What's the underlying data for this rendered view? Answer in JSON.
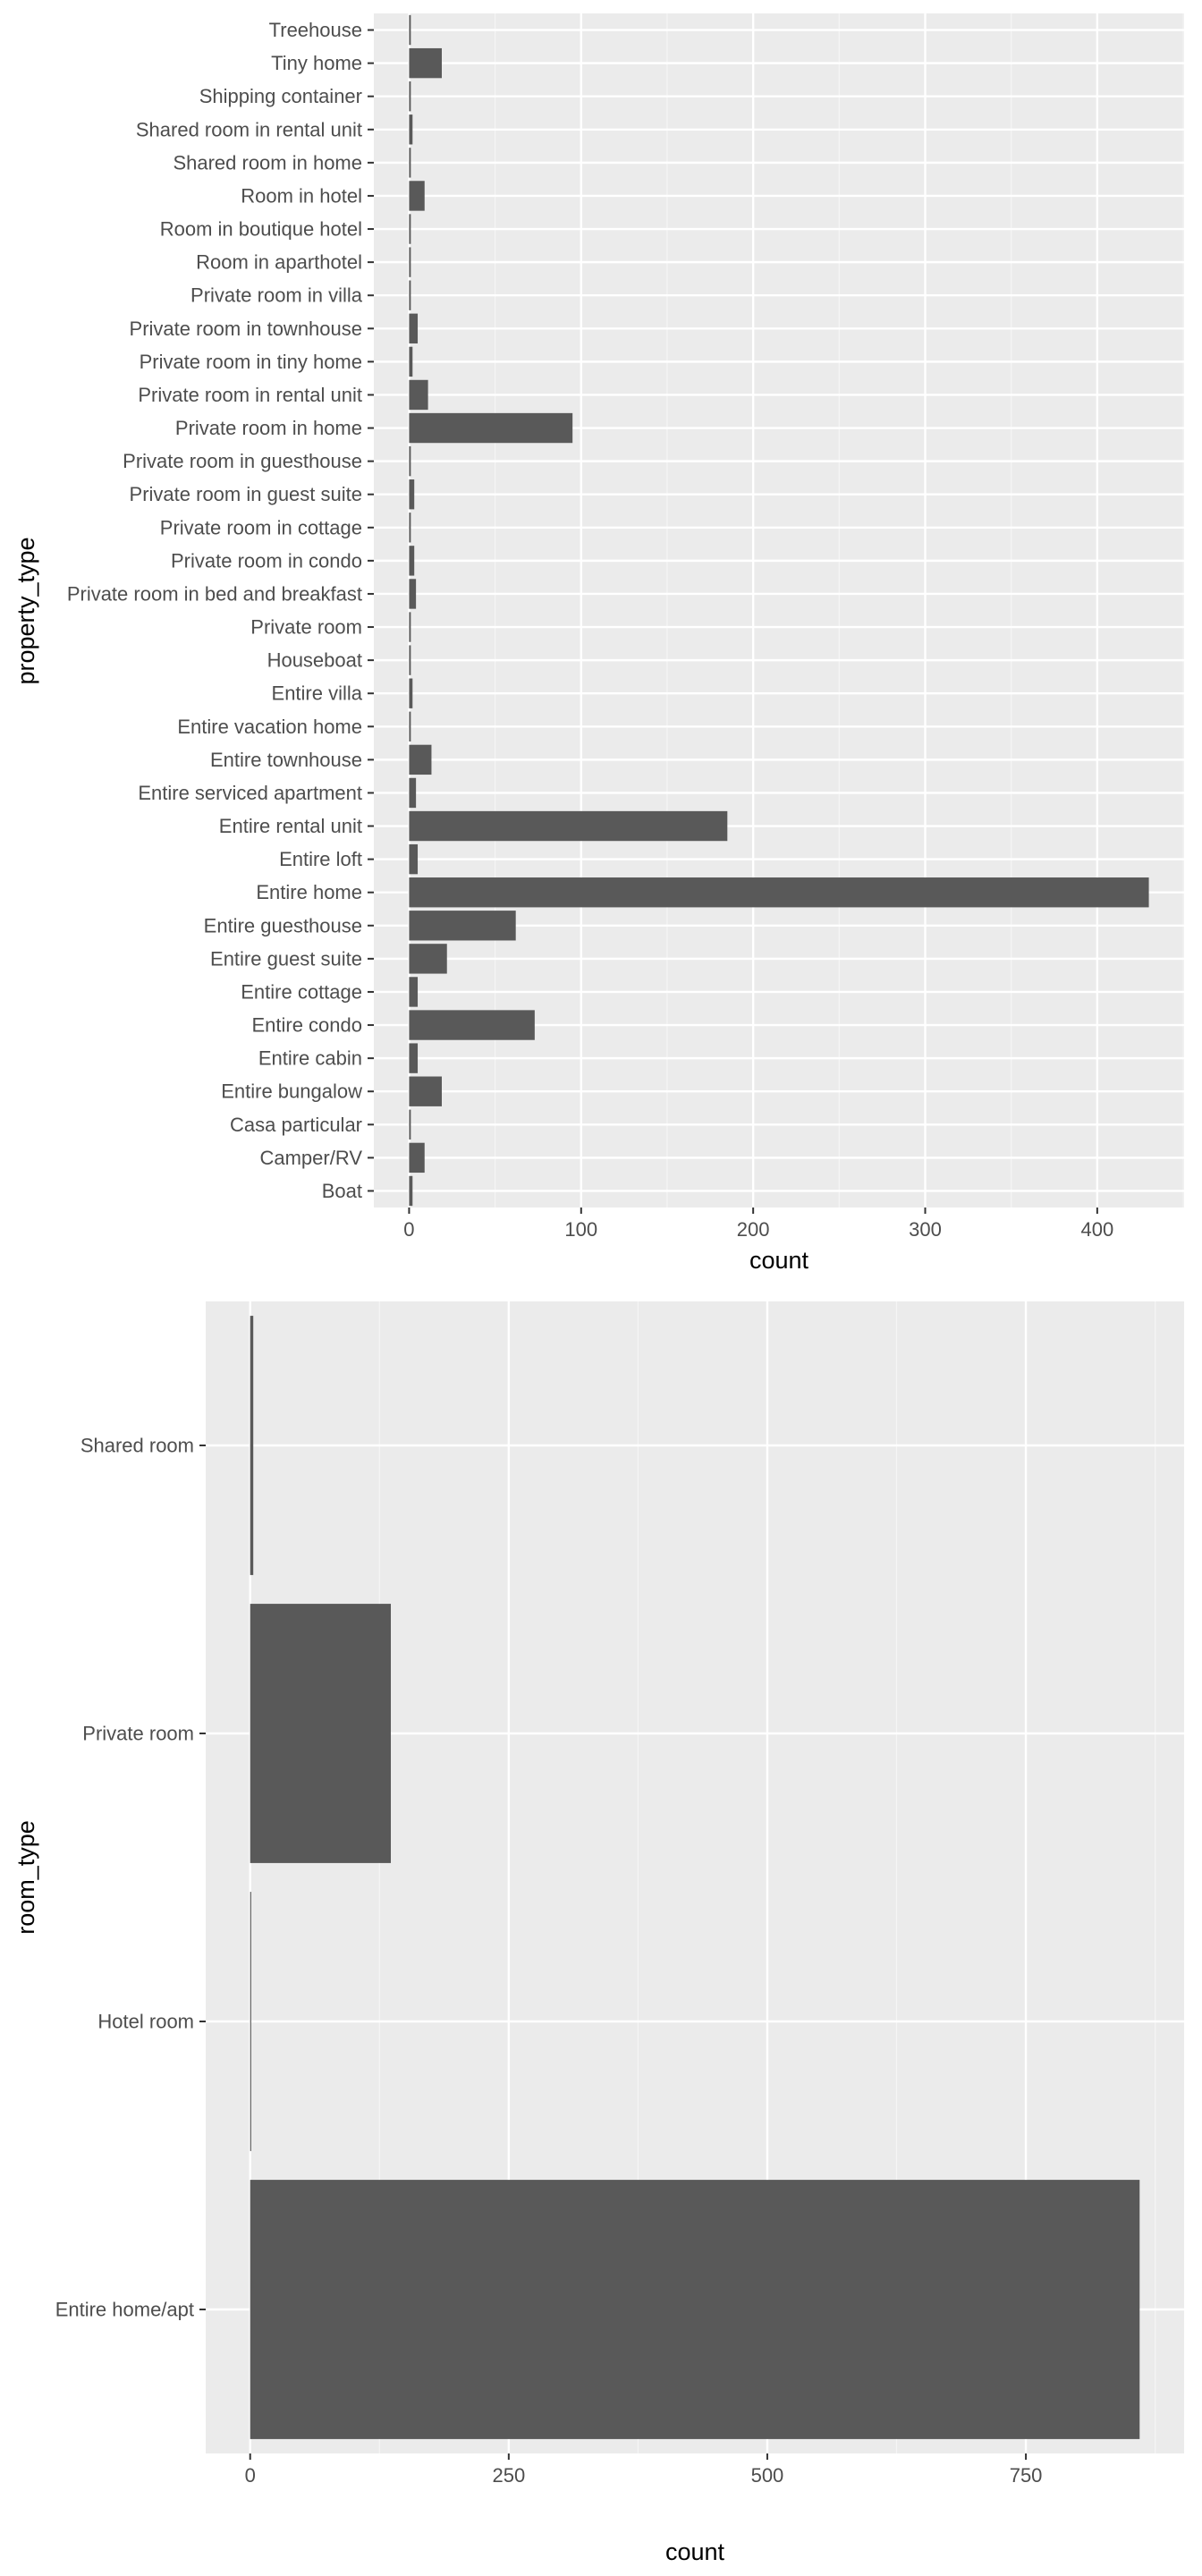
{
  "chart_data": [
    {
      "type": "bar",
      "orientation": "horizontal",
      "categories": [
        "Boat",
        "Camper/RV",
        "Casa particular",
        "Entire bungalow",
        "Entire cabin",
        "Entire condo",
        "Entire cottage",
        "Entire guest suite",
        "Entire guesthouse",
        "Entire home",
        "Entire loft",
        "Entire rental unit",
        "Entire serviced apartment",
        "Entire townhouse",
        "Entire vacation home",
        "Entire villa",
        "Houseboat",
        "Private room",
        "Private room in bed and breakfast",
        "Private room in condo",
        "Private room in cottage",
        "Private room in guest suite",
        "Private room in guesthouse",
        "Private room in home",
        "Private room in rental unit",
        "Private room in tiny home",
        "Private room in townhouse",
        "Private room in villa",
        "Room in aparthotel",
        "Room in boutique hotel",
        "Room in hotel",
        "Shared room in home",
        "Shared room in rental unit",
        "Shipping container",
        "Tiny home",
        "Treehouse"
      ],
      "values": [
        2,
        9,
        1,
        19,
        5,
        73,
        5,
        22,
        62,
        430,
        5,
        185,
        4,
        13,
        1,
        2,
        1,
        1,
        4,
        3,
        1,
        3,
        1,
        95,
        11,
        2,
        5,
        1,
        1,
        1,
        9,
        1,
        2,
        1,
        19,
        1
      ],
      "xlabel": "count",
      "ylabel": "property_type",
      "xlim": [
        -20.5,
        450.5
      ],
      "xticks": [
        0,
        100,
        200,
        300,
        400
      ],
      "grid": true,
      "colors": {
        "bar": "#595959",
        "panel": "#ebebeb",
        "grid_major": "#ffffff",
        "grid_minor": "#f5f5f5",
        "tick_text": "#4d4d4d",
        "tick_mark": "#333333"
      }
    },
    {
      "type": "bar",
      "orientation": "horizontal",
      "categories": [
        "Entire home/apt",
        "Hotel room",
        "Private room",
        "Shared room"
      ],
      "values": [
        860,
        1,
        136,
        3
      ],
      "xlabel": "count",
      "ylabel": "room_type",
      "xlim": [
        -43,
        903
      ],
      "xticks": [
        0,
        250,
        500,
        750
      ],
      "grid": true,
      "colors": {
        "bar": "#595959",
        "panel": "#ebebeb",
        "grid_major": "#ffffff",
        "grid_minor": "#f5f5f5",
        "tick_text": "#4d4d4d",
        "tick_mark": "#333333"
      }
    }
  ]
}
